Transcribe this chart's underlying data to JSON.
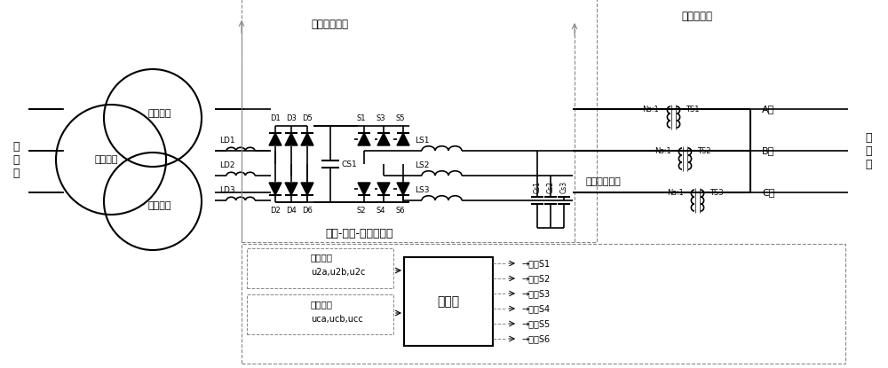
{
  "title": "",
  "bg_color": "#ffffff",
  "line_color": "#000000",
  "dashed_color": "#888888",
  "text_color": "#000000",
  "fig_width": 10.0,
  "fig_height": 4.15,
  "labels": {
    "input_grid": "输\n电\n网",
    "output_grid": "配\n电\n网",
    "winding1": "第一绕组",
    "winding2": "第二绕组",
    "winding3": "第三绕组",
    "voltage_detect_top": "电压检测单元",
    "voltage_detect_bot": "电压检测单元",
    "coupling_transformer": "耦合变压器",
    "converter": "交流-直流-交流变换器",
    "phase_A": "A相",
    "phase_B": "B相",
    "phase_C": "C相",
    "Ns1_1": "Ns:1",
    "Ns1_2": "Ns:1",
    "Ns1_3": "Ns:1",
    "TS1": "TS1",
    "TS2": "TS2",
    "TS3": "TS3",
    "LD1": "LD1",
    "LD2": "LD2",
    "LD3": "LD3",
    "D1": "D1",
    "D2": "D2",
    "D3": "D3",
    "D4": "D4",
    "D5": "D5",
    "D6": "D6",
    "S1": "S1",
    "S2": "S2",
    "S3": "S3",
    "S4": "S4",
    "S5": "S5",
    "S6": "S6",
    "CS1": "CS1",
    "LS1": "LS1",
    "LS2": "LS2",
    "LS3": "LS3",
    "CS1b": "Cs1",
    "CS2b": "Cs2",
    "CS3b": "Cs3",
    "controller": "控制器",
    "voltage_detect1": "电压检测",
    "voltage_detect2": "电压检测",
    "u2": "u2a,u2b,u2c",
    "uca": "uca,ucb,ucc",
    "ctrl_s1": "→控制S1",
    "ctrl_s2": "→控制S2",
    "ctrl_s3": "→控制S3",
    "ctrl_s4": "→控制S4",
    "ctrl_s5": "→控制S5",
    "ctrl_s6": "→控制S6"
  }
}
